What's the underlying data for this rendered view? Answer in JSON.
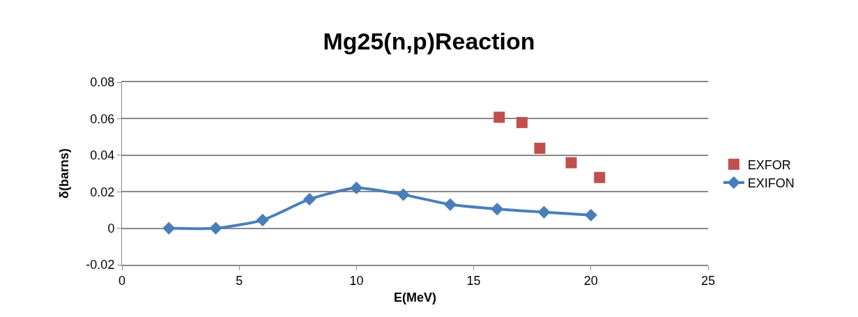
{
  "chart_data": {
    "type": "scatter",
    "title": "Mg25(n,p)Reaction",
    "xlabel": "E(MeV)",
    "ylabel": "δ(barns)",
    "xlim": [
      0,
      25
    ],
    "xticks": [
      0,
      5,
      10,
      15,
      20,
      25
    ],
    "ylim": [
      -0.02,
      0.08
    ],
    "yticks": [
      -0.02,
      0,
      0.02,
      0.04,
      0.06,
      0.08
    ],
    "grid": "y",
    "legend": "right",
    "series": [
      {
        "name": "EXFOR",
        "marker": "square",
        "color": "#c0504d",
        "x": [
          16.09,
          17.06,
          17.82,
          19.16,
          20.37
        ],
        "values": [
          0.0608,
          0.0579,
          0.0438,
          0.0359,
          0.0278
        ]
      },
      {
        "name": "EXIFON",
        "type": "line",
        "marker": "diamond",
        "line_style": "solid",
        "color": "#4a7ebb",
        "x": [
          2,
          4,
          6,
          8,
          10,
          12,
          14,
          16,
          18,
          20
        ],
        "values": [
          0,
          0,
          0.0045,
          0.0159,
          0.0221,
          0.0184,
          0.013,
          0.0105,
          0.0088,
          0.0072
        ]
      }
    ]
  }
}
